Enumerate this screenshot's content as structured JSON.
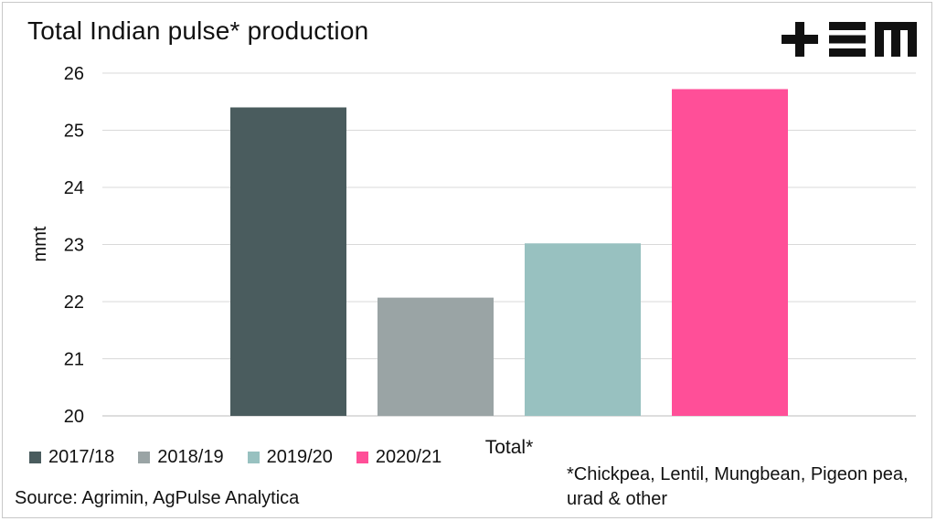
{
  "chart_data": {
    "type": "bar",
    "title": "Total Indian pulse* production",
    "xlabel": "Total*",
    "ylabel": "mmt",
    "ylim": [
      20,
      26
    ],
    "yticks": [
      20,
      21,
      22,
      23,
      24,
      25,
      26
    ],
    "grid": true,
    "legend_position": "bottom-left",
    "categories": [
      "Total*"
    ],
    "series": [
      {
        "name": "2017/18",
        "values": [
          25.4
        ],
        "color": "#4a5c5e"
      },
      {
        "name": "2018/19",
        "values": [
          22.07
        ],
        "color": "#9aa4a5"
      },
      {
        "name": "2019/20",
        "values": [
          23.02
        ],
        "color": "#98c1c0"
      },
      {
        "name": "2020/21",
        "values": [
          25.72
        ],
        "color": "#ff4f98"
      }
    ]
  },
  "logo": {
    "text": "+EM"
  },
  "source": "Source: Agrimin, AgPulse Analytica",
  "footnote": "*Chickpea, Lentil, Mungbean, Pigeon pea, urad & other"
}
